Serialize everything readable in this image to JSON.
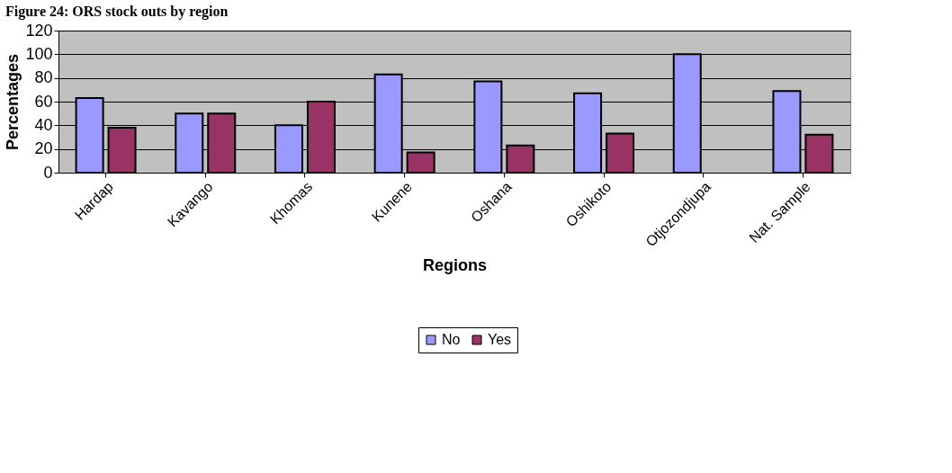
{
  "chart_data": {
    "type": "bar",
    "title": "Figure 24: ORS stock outs by region",
    "xlabel": "Regions",
    "ylabel": "Percentages",
    "categories": [
      "Hardap",
      "Kavango",
      "Khomas",
      "Kunene",
      "Oshana",
      "Oshikoto",
      "Otjozondjupa",
      "Nat. Sample"
    ],
    "series": [
      {
        "name": "No",
        "color": "#9999ff",
        "values": [
          63,
          50,
          40,
          83,
          77,
          67,
          100,
          69
        ]
      },
      {
        "name": "Yes",
        "color": "#993366",
        "values": [
          38,
          50,
          60,
          17,
          23,
          33,
          null,
          32
        ]
      }
    ],
    "ylim": [
      0,
      120
    ],
    "yticks": [
      0,
      20,
      40,
      60,
      80,
      100,
      120
    ],
    "grid": "y",
    "legend": "bottom"
  }
}
